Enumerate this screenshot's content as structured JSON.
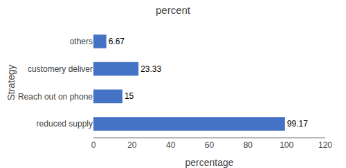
{
  "chart_data": {
    "type": "bar",
    "orientation": "horizontal",
    "title": "percent",
    "xlabel": "percentage",
    "ylabel": "Strategy",
    "categories": [
      "reduced supply",
      "Reach out on phone",
      "customery deliver",
      "others"
    ],
    "values": [
      99.17,
      15,
      23.33,
      6.67
    ],
    "color": "#4472C4",
    "xlim": [
      0,
      120
    ],
    "xticks": [
      0,
      20,
      40,
      60,
      80,
      100,
      120
    ],
    "data_labels": true,
    "grid": false
  }
}
